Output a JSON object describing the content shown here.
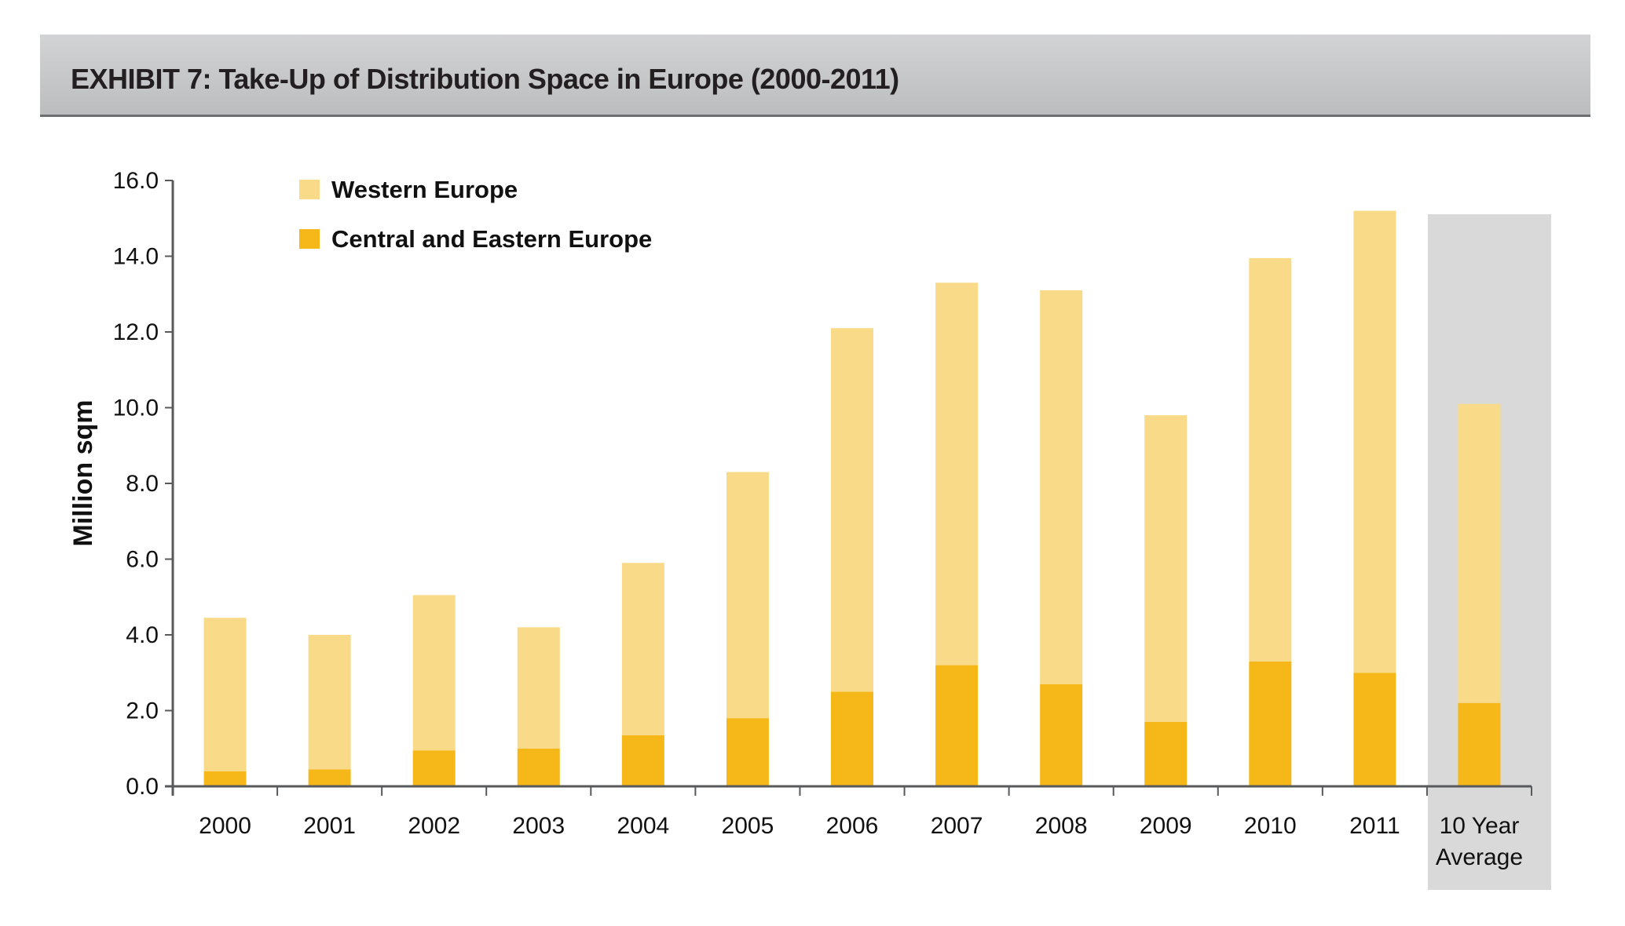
{
  "header": {
    "title": "EXHIBIT 7: Take-Up of Distribution Space in Europe (2000-2011)"
  },
  "chart_data": {
    "type": "bar",
    "stacked": true,
    "title": "EXHIBIT 7: Take-Up of Distribution Space in Europe (2000-2011)",
    "xlabel": "",
    "ylabel": "Million sqm",
    "ylim": [
      0,
      16
    ],
    "yticks": [
      "0.0",
      "2.0",
      "4.0",
      "6.0",
      "8.0",
      "10.0",
      "12.0",
      "14.0",
      "16.0"
    ],
    "grid": false,
    "legend_position": "top-left",
    "categories": [
      "2000",
      "2001",
      "2002",
      "2003",
      "2004",
      "2005",
      "2006",
      "2007",
      "2008",
      "2009",
      "2010",
      "2011",
      "10 Year Average"
    ],
    "highlighted_category": "10 Year Average",
    "series": [
      {
        "name": "Central and Eastern Europe",
        "color": "#F6B818",
        "values": [
          0.4,
          0.45,
          0.95,
          1.0,
          1.35,
          1.8,
          2.5,
          3.2,
          2.7,
          1.7,
          3.3,
          3.0,
          2.2
        ]
      },
      {
        "name": "Western Europe",
        "color": "#F9DA88",
        "values": [
          4.05,
          3.55,
          4.1,
          3.2,
          4.55,
          6.5,
          9.6,
          10.1,
          10.4,
          8.1,
          10.65,
          12.2,
          7.9
        ]
      }
    ],
    "totals": [
      4.45,
      4.0,
      5.05,
      4.2,
      5.9,
      8.3,
      12.1,
      13.3,
      13.1,
      9.8,
      13.95,
      15.2,
      10.1
    ]
  },
  "legend": [
    {
      "label": "Western Europe",
      "color": "#F9DA88"
    },
    {
      "label": "Central and Eastern  Europe",
      "color": "#F6B818"
    }
  ],
  "colors": {
    "header_band": "#C7C8CA",
    "highlight_band": "#D9D9D9",
    "axis": "#58595B"
  }
}
